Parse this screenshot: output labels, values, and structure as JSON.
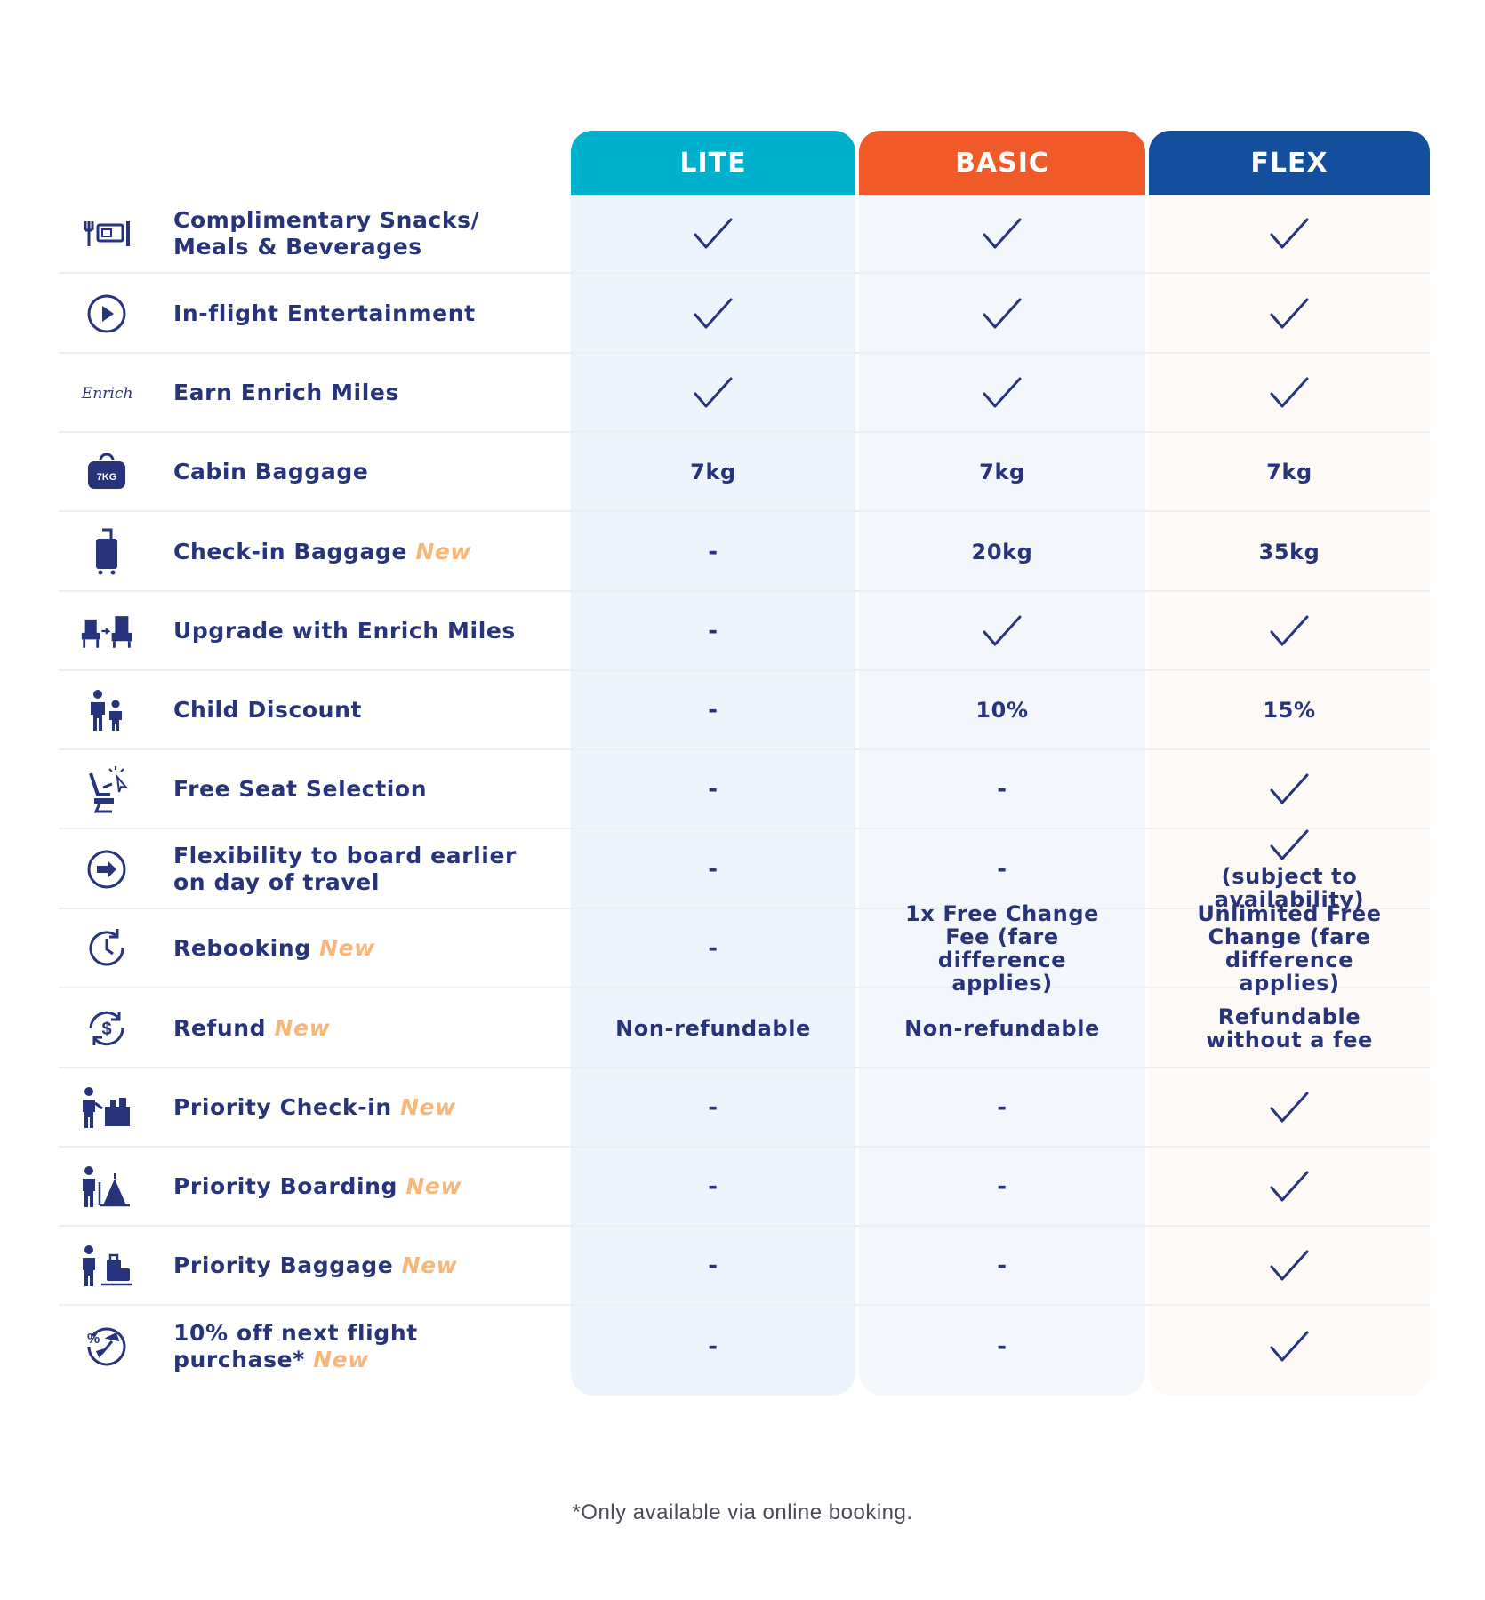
{
  "columns": {
    "lite": "LITE",
    "basic": "BASIC",
    "flex": "FLEX"
  },
  "colors": {
    "lite": "#00b1cd",
    "basic": "#f05a2b",
    "flex": "#144f9e",
    "text": "#27337a",
    "new_tag": "#f7b77a"
  },
  "new_tag": "New",
  "rows": [
    {
      "feature": "Complimentary Snacks/ Meals & Beverages",
      "icon": "meal-tray-icon",
      "lite": "check",
      "basic": "check",
      "flex": "check"
    },
    {
      "feature": "In-flight Entertainment",
      "icon": "play-icon",
      "lite": "check",
      "basic": "check",
      "flex": "check"
    },
    {
      "feature": "Earn Enrich Miles",
      "icon": "enrich-logo",
      "icon_text": "Enrich",
      "lite": "check",
      "basic": "check",
      "flex": "check"
    },
    {
      "feature": "Cabin Baggage",
      "icon": "cabin-bag-icon",
      "icon_text": "7KG",
      "lite": "7kg",
      "basic": "7kg",
      "flex": "7kg"
    },
    {
      "feature": "Check-in Baggage",
      "new": true,
      "icon": "suitcase-icon",
      "lite": "-",
      "basic": "20kg",
      "flex": "35kg"
    },
    {
      "feature": "Upgrade with Enrich Miles",
      "icon": "seat-upgrade-icon",
      "lite": "-",
      "basic": "check",
      "flex": "check"
    },
    {
      "feature": "Child Discount",
      "icon": "adult-child-icon",
      "lite": "-",
      "basic": "10%",
      "flex": "15%"
    },
    {
      "feature": "Free Seat Selection",
      "icon": "seat-select-icon",
      "lite": "-",
      "basic": "-",
      "flex": "check"
    },
    {
      "feature": "Flexibility to board earlier on day of travel",
      "icon": "arrow-circle-icon",
      "lite": "-",
      "basic": "-",
      "flex": "check",
      "flex_note": "(subject to availability)"
    },
    {
      "feature": "Rebooking",
      "new": true,
      "icon": "clock-refresh-icon",
      "lite": "-",
      "basic": "1x Free Change Fee (fare difference applies)",
      "flex": "Unlimited Free Change (fare difference applies)"
    },
    {
      "feature": "Refund",
      "new": true,
      "icon": "refund-dollar-icon",
      "lite": "Non-refundable",
      "basic": "Non-refundable",
      "flex": "Refundable without a fee"
    },
    {
      "feature": "Priority Check-in",
      "new": true,
      "icon": "priority-checkin-icon",
      "lite": "-",
      "basic": "-",
      "flex": "check"
    },
    {
      "feature": "Priority Boarding",
      "new": true,
      "icon": "priority-boarding-icon",
      "lite": "-",
      "basic": "-",
      "flex": "check"
    },
    {
      "feature": "Priority Baggage",
      "new": true,
      "icon": "priority-baggage-icon",
      "lite": "-",
      "basic": "-",
      "flex": "check"
    },
    {
      "feature": "10% off next flight purchase*",
      "new": true,
      "icon": "discount-plane-icon",
      "lite": "-",
      "basic": "-",
      "flex": "check"
    }
  ],
  "footnote": "*Only available via online booking."
}
